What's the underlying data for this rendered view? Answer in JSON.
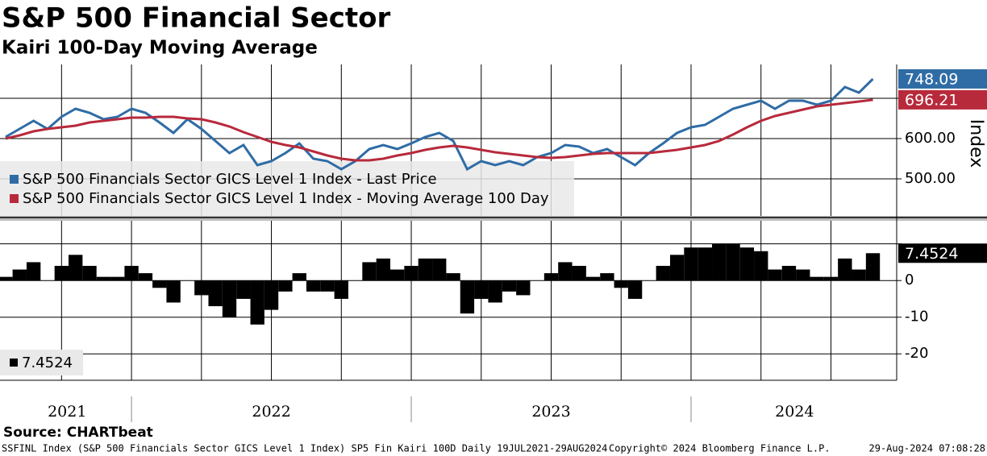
{
  "chart_data": [
    {
      "type": "line",
      "title": "S&P 500 Financial Sector",
      "subtitle": "Kairi 100-Day Moving Average",
      "y_label": "Index",
      "x": [
        2021.55,
        2021.6,
        2021.65,
        2021.7,
        2021.75,
        2021.8,
        2021.85,
        2021.9,
        2021.95,
        2022.0,
        2022.05,
        2022.1,
        2022.15,
        2022.2,
        2022.25,
        2022.3,
        2022.35,
        2022.4,
        2022.45,
        2022.5,
        2022.55,
        2022.6,
        2022.65,
        2022.7,
        2022.75,
        2022.8,
        2022.85,
        2022.9,
        2022.95,
        2023.0,
        2023.05,
        2023.1,
        2023.15,
        2023.2,
        2023.25,
        2023.3,
        2023.35,
        2023.4,
        2023.45,
        2023.5,
        2023.55,
        2023.6,
        2023.65,
        2023.7,
        2023.75,
        2023.8,
        2023.85,
        2023.9,
        2023.95,
        2024.0,
        2024.05,
        2024.1,
        2024.15,
        2024.2,
        2024.25,
        2024.3,
        2024.35,
        2024.4,
        2024.45,
        2024.5,
        2024.55,
        2024.6,
        2024.65
      ],
      "series": [
        {
          "name": "S&P 500 Financials Sector GICS Level 1 Index - Last Price",
          "color": "#2f6ca5",
          "last_label": "748.09",
          "values": [
            604,
            624,
            644,
            624,
            654,
            674,
            664,
            648,
            654,
            674,
            664,
            640,
            614,
            648,
            624,
            594,
            564,
            584,
            534,
            544,
            564,
            588,
            550,
            544,
            524,
            544,
            574,
            584,
            574,
            588,
            604,
            614,
            594,
            524,
            544,
            534,
            544,
            534,
            554,
            564,
            584,
            580,
            564,
            574,
            554,
            534,
            564,
            588,
            614,
            628,
            634,
            654,
            674,
            684,
            694,
            674,
            694,
            694,
            684,
            694,
            728,
            714,
            748.09
          ]
        },
        {
          "name": "S&P 500 Financials Sector GICS Level 1 Index - Moving Average 100 Day",
          "color": "#b72a3c",
          "last_label": "696.21",
          "values": [
            600,
            608,
            618,
            624,
            628,
            632,
            640,
            644,
            648,
            652,
            652,
            654,
            654,
            650,
            648,
            640,
            630,
            616,
            604,
            592,
            584,
            578,
            568,
            558,
            550,
            546,
            546,
            550,
            558,
            564,
            572,
            578,
            582,
            578,
            572,
            566,
            562,
            558,
            554,
            552,
            554,
            558,
            562,
            564,
            564,
            564,
            564,
            568,
            572,
            578,
            584,
            594,
            610,
            628,
            644,
            656,
            664,
            672,
            680,
            684,
            688,
            692,
            696.21
          ]
        }
      ],
      "xlim": [
        2021.53,
        2024.735
      ],
      "ylim": [
        408,
        784
      ],
      "yticks": [
        {
          "value": 500,
          "label": "500.00"
        },
        {
          "value": 600,
          "label": "600.00"
        }
      ],
      "ygrid": [
        500,
        600,
        700
      ],
      "xgrid": [
        2021.75,
        2022,
        2022.25,
        2022.5,
        2022.75,
        2023,
        2023.25,
        2023.5,
        2023.75,
        2024,
        2024.25,
        2024.5
      ],
      "legend": "lower left"
    },
    {
      "type": "bar",
      "color": "#000000",
      "last_label": "7.4524",
      "legend_label": "7.4524",
      "x": [
        2021.55,
        2021.6,
        2021.65,
        2021.7,
        2021.75,
        2021.8,
        2021.85,
        2021.9,
        2021.95,
        2022.0,
        2022.05,
        2022.1,
        2022.15,
        2022.2,
        2022.25,
        2022.3,
        2022.35,
        2022.4,
        2022.45,
        2022.5,
        2022.55,
        2022.6,
        2022.65,
        2022.7,
        2022.75,
        2022.8,
        2022.85,
        2022.9,
        2022.95,
        2023.0,
        2023.05,
        2023.1,
        2023.15,
        2023.2,
        2023.25,
        2023.3,
        2023.35,
        2023.4,
        2023.45,
        2023.5,
        2023.55,
        2023.6,
        2023.65,
        2023.7,
        2023.75,
        2023.8,
        2023.85,
        2023.9,
        2023.95,
        2024.0,
        2024.05,
        2024.1,
        2024.15,
        2024.2,
        2024.25,
        2024.3,
        2024.35,
        2024.4,
        2024.45,
        2024.5,
        2024.55,
        2024.6,
        2024.65
      ],
      "values": [
        1,
        3,
        5,
        0,
        4,
        7,
        4,
        1,
        1,
        4,
        2,
        -2,
        -6,
        0,
        -4,
        -7,
        -10,
        -5,
        -12,
        -8,
        -3,
        2,
        -3,
        -3,
        -5,
        0,
        5,
        6,
        3,
        4,
        6,
        6,
        2,
        -9,
        -5,
        -6,
        -3,
        -4,
        0,
        2,
        5,
        4,
        1,
        2,
        -2,
        -5,
        0,
        4,
        7,
        9,
        9,
        10,
        10,
        9,
        8,
        3,
        4,
        3,
        1,
        1,
        6,
        3,
        7.4524
      ],
      "xlim": [
        2021.53,
        2024.735
      ],
      "ylim": [
        -27.2,
        16.3
      ],
      "yticks": [
        0,
        -10,
        -20
      ],
      "ygrid": [
        10,
        0,
        -10,
        -20
      ],
      "xgrid": [
        2021.75,
        2022,
        2022.25,
        2022.5,
        2022.75,
        2023,
        2023.25,
        2023.5,
        2023.75,
        2024,
        2024.25,
        2024.5
      ],
      "xticks": [
        {
          "value": 2021.77,
          "label": "2021"
        },
        {
          "value": 2022.5,
          "label": "2022"
        },
        {
          "value": 2023.5,
          "label": "2023"
        },
        {
          "value": 2024.37,
          "label": "2024"
        }
      ],
      "legend": "lower left"
    }
  ],
  "footer": {
    "source": "Source: CHARTbeat",
    "description": "SSFINL Index (S&P 500 Financials Sector GICS Level 1 Index) SP5 Fin Kairi 100D  Daily 19JUL2021-29AUG2024",
    "copyright": "Copyright© 2024 Bloomberg Finance L.P.",
    "timestamp": "29-Aug-2024 07:08:28"
  }
}
